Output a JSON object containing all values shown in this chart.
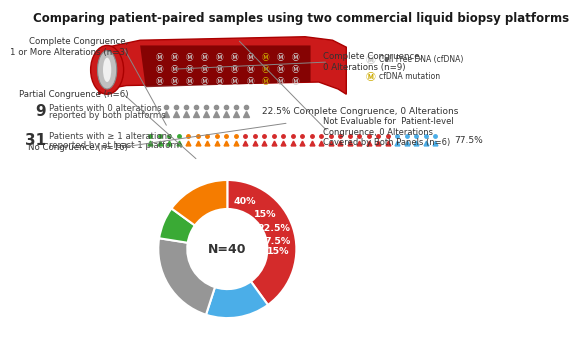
{
  "title": "Comparing patient-paired samples using two commercial liquid biopsy platforms",
  "title_fontsize": 8.5,
  "row1_num": "9",
  "row1_label": "Patients with 0 alterations\nreported by both platforms",
  "row1_pct": "22.5% Complete Congruence, 0 Alterations",
  "row2_num": "31",
  "row2_label": "Patients with ≥ 1 alterations\nreported by at least 1 platform",
  "row2_pct": "77.5%",
  "pie_sizes": [
    40,
    15,
    22.5,
    7.5,
    15
  ],
  "pie_colors": [
    "#d42b2b",
    "#4baee8",
    "#969696",
    "#3aaa35",
    "#f57c00"
  ],
  "pie_pcts": [
    "40%",
    "15%",
    "22.5%",
    "7.5%",
    "15%"
  ],
  "pie_center_text": "N=40",
  "bg_color": "#ffffff",
  "vessel_red": "#cc1a1a",
  "vessel_dark": "#7a0000",
  "dna_color": "#cccccc",
  "dna_mut_color": "#ccaa00",
  "grey_person": "#909090",
  "green_person": "#3aaa35",
  "orange_person": "#f57c00",
  "red_person": "#d42b2b",
  "blue_person": "#4baee8",
  "ann_left1": "No Congruence (n=16)",
  "ann_left2": "Partial Congruence (n=6)",
  "ann_left3": "Complete Congruence,\n1 or More Alterations (n=3)",
  "ann_right1": "Not Evaluable for  Patient-level\nCongruence, 0 Alterations\nCovered by Both Panels (n=6)",
  "ann_right2": "Complete Congruence,\n0 Alterations (n=9)"
}
